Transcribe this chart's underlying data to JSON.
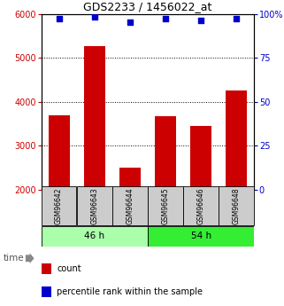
{
  "title": "GDS2233 / 1456022_at",
  "categories": [
    "GSM96642",
    "GSM96643",
    "GSM96644",
    "GSM96645",
    "GSM96646",
    "GSM96648"
  ],
  "bar_values": [
    3700,
    5270,
    2510,
    3680,
    3450,
    4250
  ],
  "percentile_values": [
    97,
    98,
    95,
    97,
    96,
    97
  ],
  "bar_color": "#cc0000",
  "dot_color": "#0000cc",
  "ylim_left": [
    2000,
    6000
  ],
  "ylim_right": [
    0,
    100
  ],
  "yticks_left": [
    2000,
    3000,
    4000,
    5000,
    6000
  ],
  "yticks_right": [
    0,
    25,
    50,
    75,
    100
  ],
  "ytick_labels_right": [
    "0",
    "25",
    "50",
    "75",
    "100%"
  ],
  "grid_values": [
    3000,
    4000,
    5000
  ],
  "group1_label": "46 h",
  "group2_label": "54 h",
  "group1_indices": [
    0,
    1,
    2
  ],
  "group2_indices": [
    3,
    4,
    5
  ],
  "group1_color_light": "#aaffaa",
  "group2_color_light": "#33ee33",
  "legend_count_label": "count",
  "legend_pct_label": "percentile rank within the sample",
  "bar_width": 0.6,
  "axis_label_color_left": "#cc0000",
  "axis_label_color_right": "#0000cc",
  "label_box_color": "#cccccc",
  "tick_fontsize": 7,
  "title_fontsize": 9
}
